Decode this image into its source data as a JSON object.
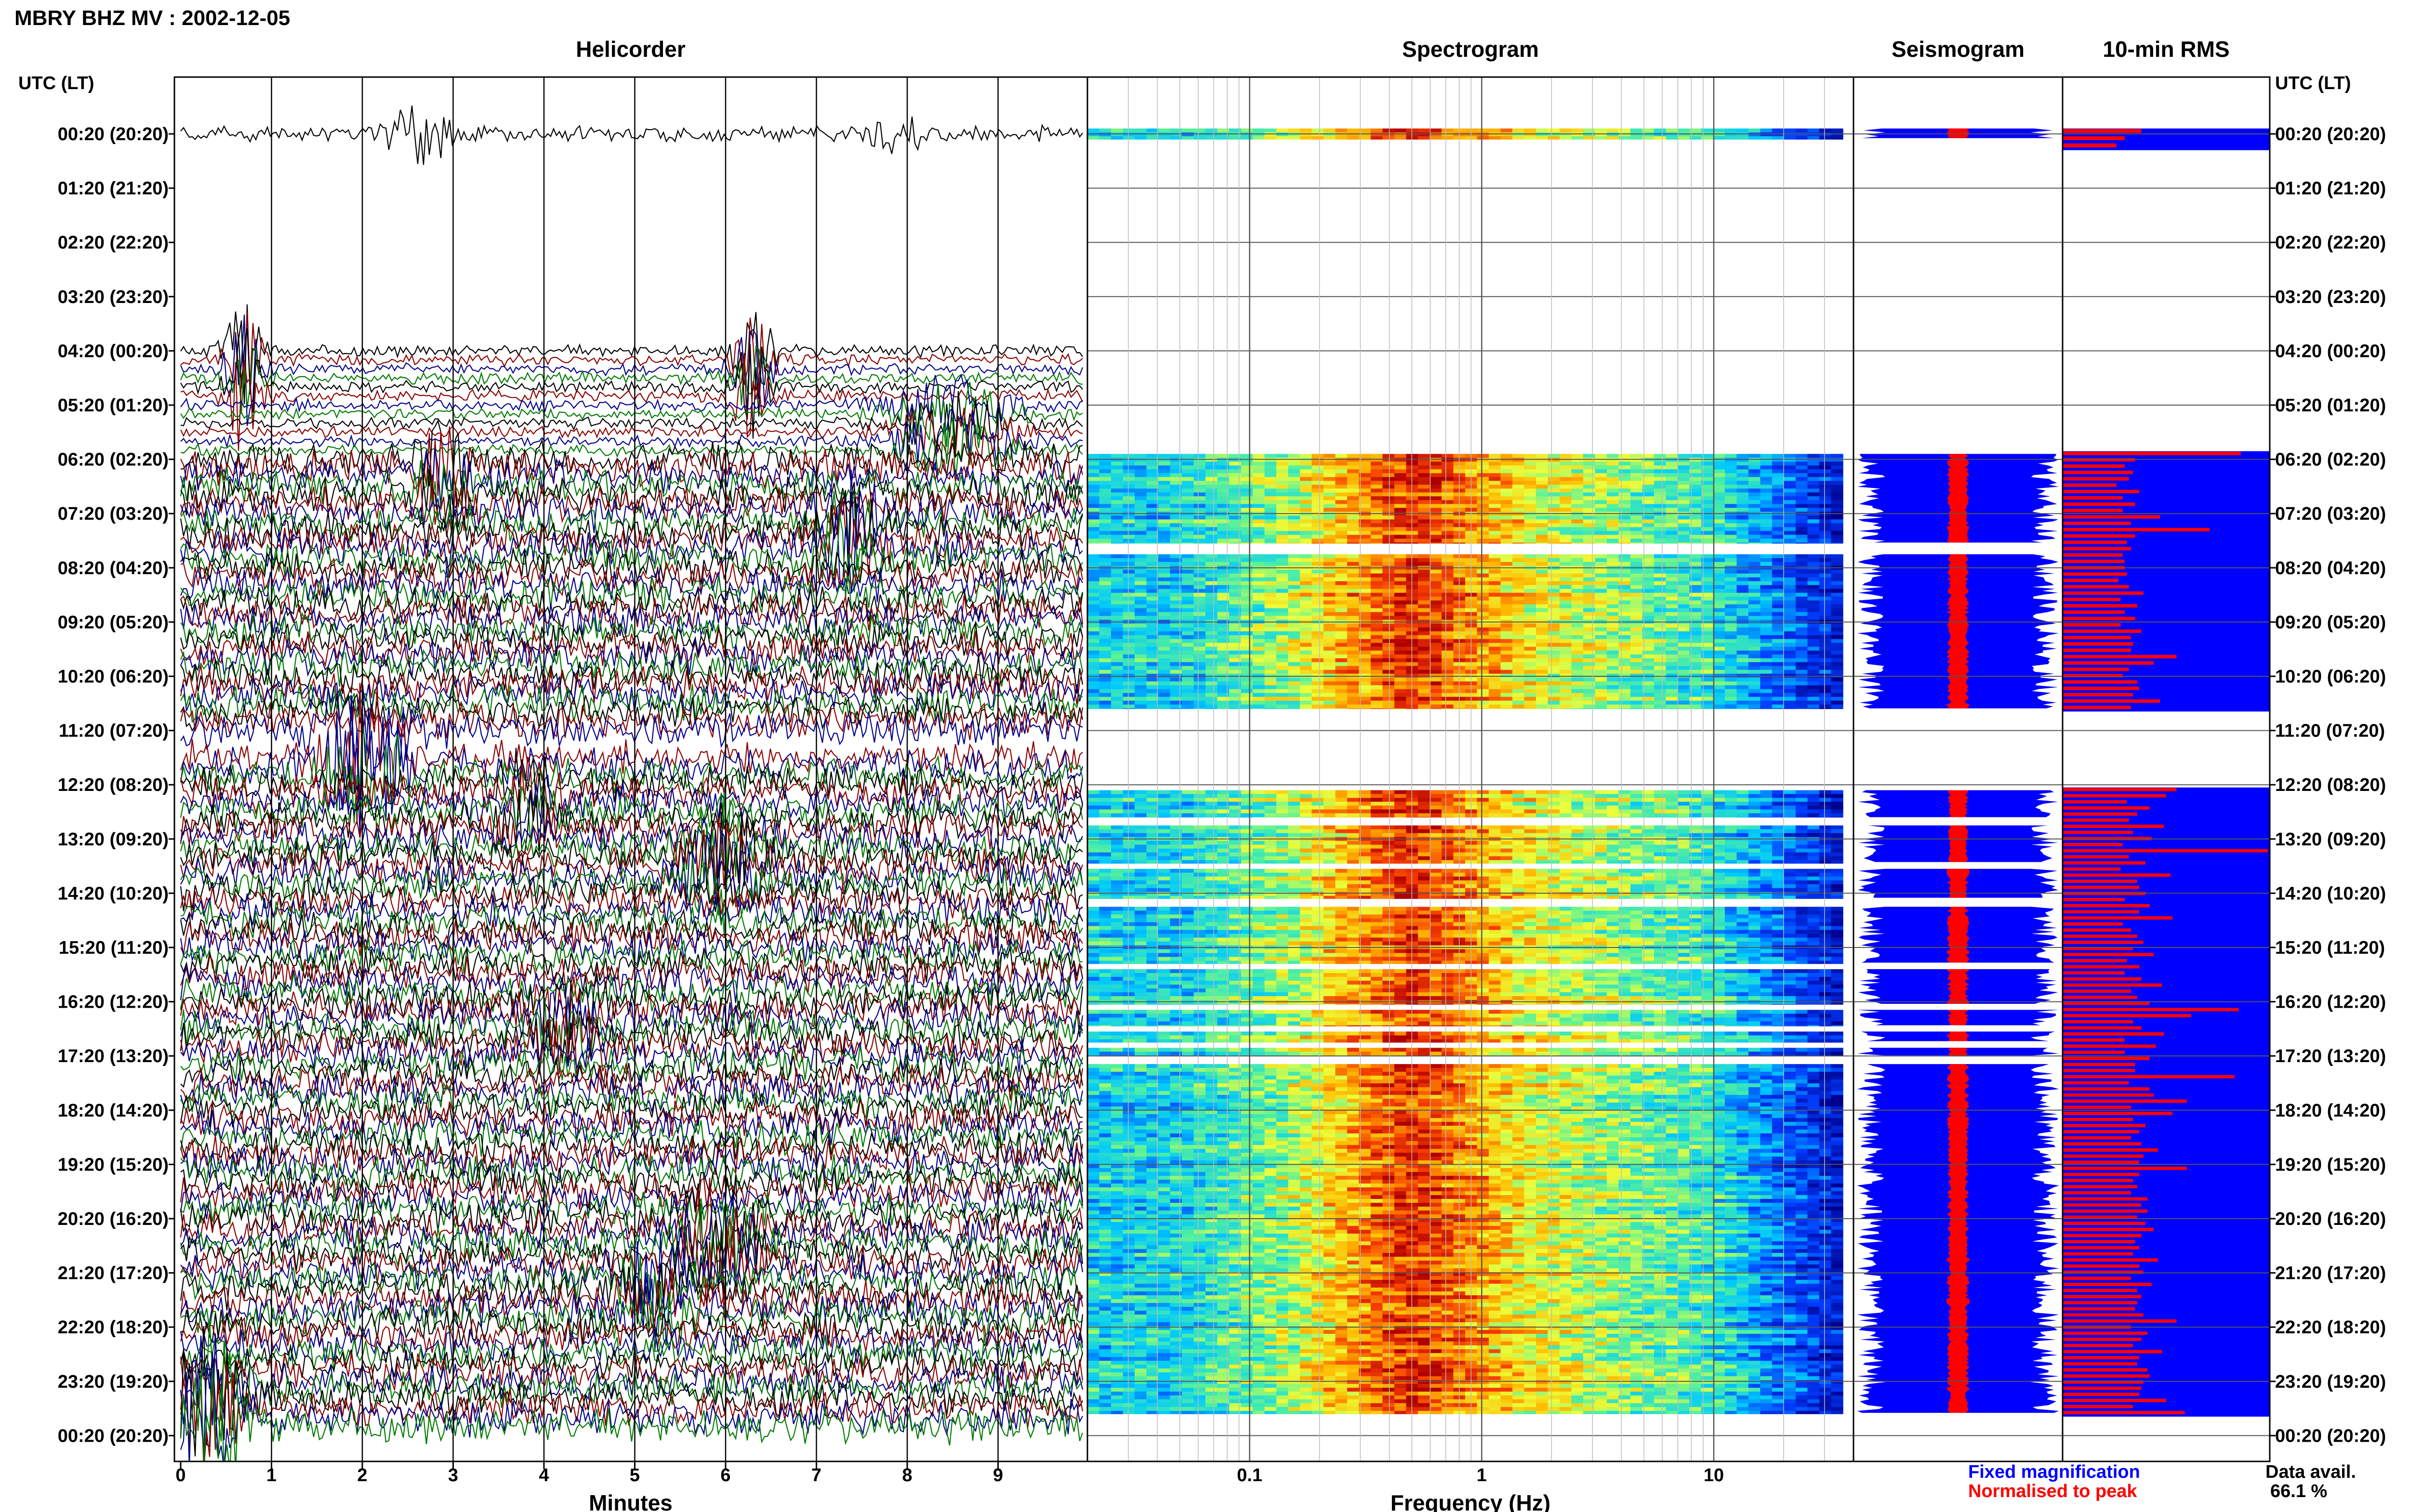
{
  "header": {
    "title": "MBRY BHZ MV : 2002-12-05",
    "utc_label_left": "UTC (LT)",
    "utc_label_right": "UTC (LT)"
  },
  "panels": {
    "helicorder": "Helicorder",
    "spectrogram": "Spectrogram",
    "seismogram": "Seismogram",
    "rms": "10-min RMS"
  },
  "axes": {
    "minutes_label": "Minutes",
    "frequency_label": "Frequency (Hz)",
    "minute_ticks": [
      "0",
      "1",
      "2",
      "3",
      "4",
      "5",
      "6",
      "7",
      "8",
      "9"
    ],
    "frequency_ticks": [
      "0.1",
      "1",
      "10"
    ]
  },
  "legend": {
    "fixed": "Fixed magnification",
    "normalised": "Normalised to peak",
    "data_avail_label": "Data avail.",
    "data_avail_value": "66.1 %"
  },
  "colors": {
    "trace_black": "#000000",
    "trace_red": "#8b0000",
    "trace_blue": "#00008b",
    "trace_green": "#007a00",
    "fixed_blue": "#0000ff",
    "normalised_red": "#ff0000"
  },
  "chart_data": {
    "type": "heatmap",
    "time_labels": [
      "00:20 (20:20)",
      "01:20 (21:20)",
      "02:20 (22:20)",
      "03:20 (23:20)",
      "04:20 (00:20)",
      "05:20 (01:20)",
      "06:20 (02:20)",
      "07:20 (03:20)",
      "08:20 (04:20)",
      "09:20 (05:20)",
      "10:20 (06:20)",
      "11:20 (07:20)",
      "12:20 (08:20)",
      "13:20 (09:20)",
      "14:20 (10:20)",
      "15:20 (11:20)",
      "16:20 (12:20)",
      "17:20 (13:20)",
      "18:20 (14:20)",
      "19:20 (15:20)",
      "20:20 (16:20)",
      "21:20 (17:20)",
      "22:20 (18:20)",
      "23:20 (19:20)",
      "00:20 (20:20)"
    ],
    "helicorder": {
      "xlabel": "Minutes",
      "xlim": [
        0,
        10
      ],
      "segments": [
        {
          "start_hour": 0,
          "end_hour": 0.3
        },
        {
          "start_hour": 3.6,
          "end_hour": 11.0
        },
        {
          "start_hour": 11.5,
          "end_hour": 24.0
        }
      ]
    },
    "spectrogram": {
      "xlabel": "Frequency (Hz)",
      "xscale": "log",
      "xlim": [
        0.02,
        40
      ],
      "peak_band_hz": [
        0.18,
        0.5
      ],
      "data_blocks": [
        {
          "start_hour": -0.1,
          "end_hour": 0.1
        },
        {
          "start_hour": 5.9,
          "end_hour": 7.55
        },
        {
          "start_hour": 7.75,
          "end_hour": 10.6
        },
        {
          "start_hour": 12.1,
          "end_hour": 12.6
        },
        {
          "start_hour": 12.75,
          "end_hour": 13.45
        },
        {
          "start_hour": 13.55,
          "end_hour": 14.1
        },
        {
          "start_hour": 14.25,
          "end_hour": 15.3
        },
        {
          "start_hour": 15.4,
          "end_hour": 16.05
        },
        {
          "start_hour": 16.15,
          "end_hour": 16.45
        },
        {
          "start_hour": 16.55,
          "end_hour": 16.75
        },
        {
          "start_hour": 16.85,
          "end_hour": 17.0
        },
        {
          "start_hour": 17.15,
          "end_hour": 23.6
        }
      ]
    },
    "rms_10min": {
      "values": [
        0.38,
        0.3,
        0.26,
        0.86,
        0.35,
        0.3,
        0.34,
        0.32,
        0.26,
        0.37,
        0.29,
        0.35,
        0.29,
        0.47,
        0.33,
        0.71,
        0.35,
        0.31,
        0.33,
        0.29,
        0.3,
        0.3,
        0.31,
        0.27,
        0.32,
        0.39,
        0.28,
        0.36,
        0.3,
        0.35,
        0.28,
        0.38,
        0.33,
        0.34,
        0.33,
        0.55,
        0.44,
        0.32,
        0.29,
        0.36,
        0.37,
        0.34,
        0.47,
        0.33,
        0.55,
        0.5,
        0.31,
        0.42,
        0.36,
        0.32,
        0.49,
        0.34,
        0.43,
        0.29,
        0.99,
        0.32,
        0.4,
        0.28,
        0.52,
        0.36,
        0.37,
        0.4,
        0.3,
        0.42,
        0.37,
        0.53,
        0.29,
        0.33,
        0.36,
        0.39,
        0.34,
        0.44,
        0.31,
        0.37,
        0.3,
        0.38,
        0.48,
        0.33,
        0.36,
        0.42,
        0.85,
        0.62,
        0.34,
        0.38,
        0.49,
        0.3,
        0.45,
        0.3,
        0.42,
        0.35,
        0.35,
        0.83,
        0.32,
        0.42,
        0.44,
        0.6,
        0.33,
        0.53,
        0.34,
        0.4,
        0.37,
        0.33,
        0.38,
        0.46,
        0.39,
        0.37,
        0.6,
        0.37,
        0.34,
        0.36,
        0.33,
        0.41,
        0.38,
        0.41,
        0.36,
        0.4,
        0.44,
        0.38,
        0.35,
        0.37,
        0.34,
        0.46,
        0.37,
        0.39,
        0.33,
        0.43,
        0.36,
        0.38,
        0.36,
        0.35,
        0.39,
        0.55,
        0.33,
        0.41,
        0.38,
        0.34,
        0.48,
        0.37,
        0.36,
        0.41,
        0.42,
        0.39,
        0.38,
        0.37,
        0.5,
        0.34,
        0.59
      ]
    },
    "legend": [
      "Fixed magnification",
      "Normalised to peak"
    ]
  }
}
